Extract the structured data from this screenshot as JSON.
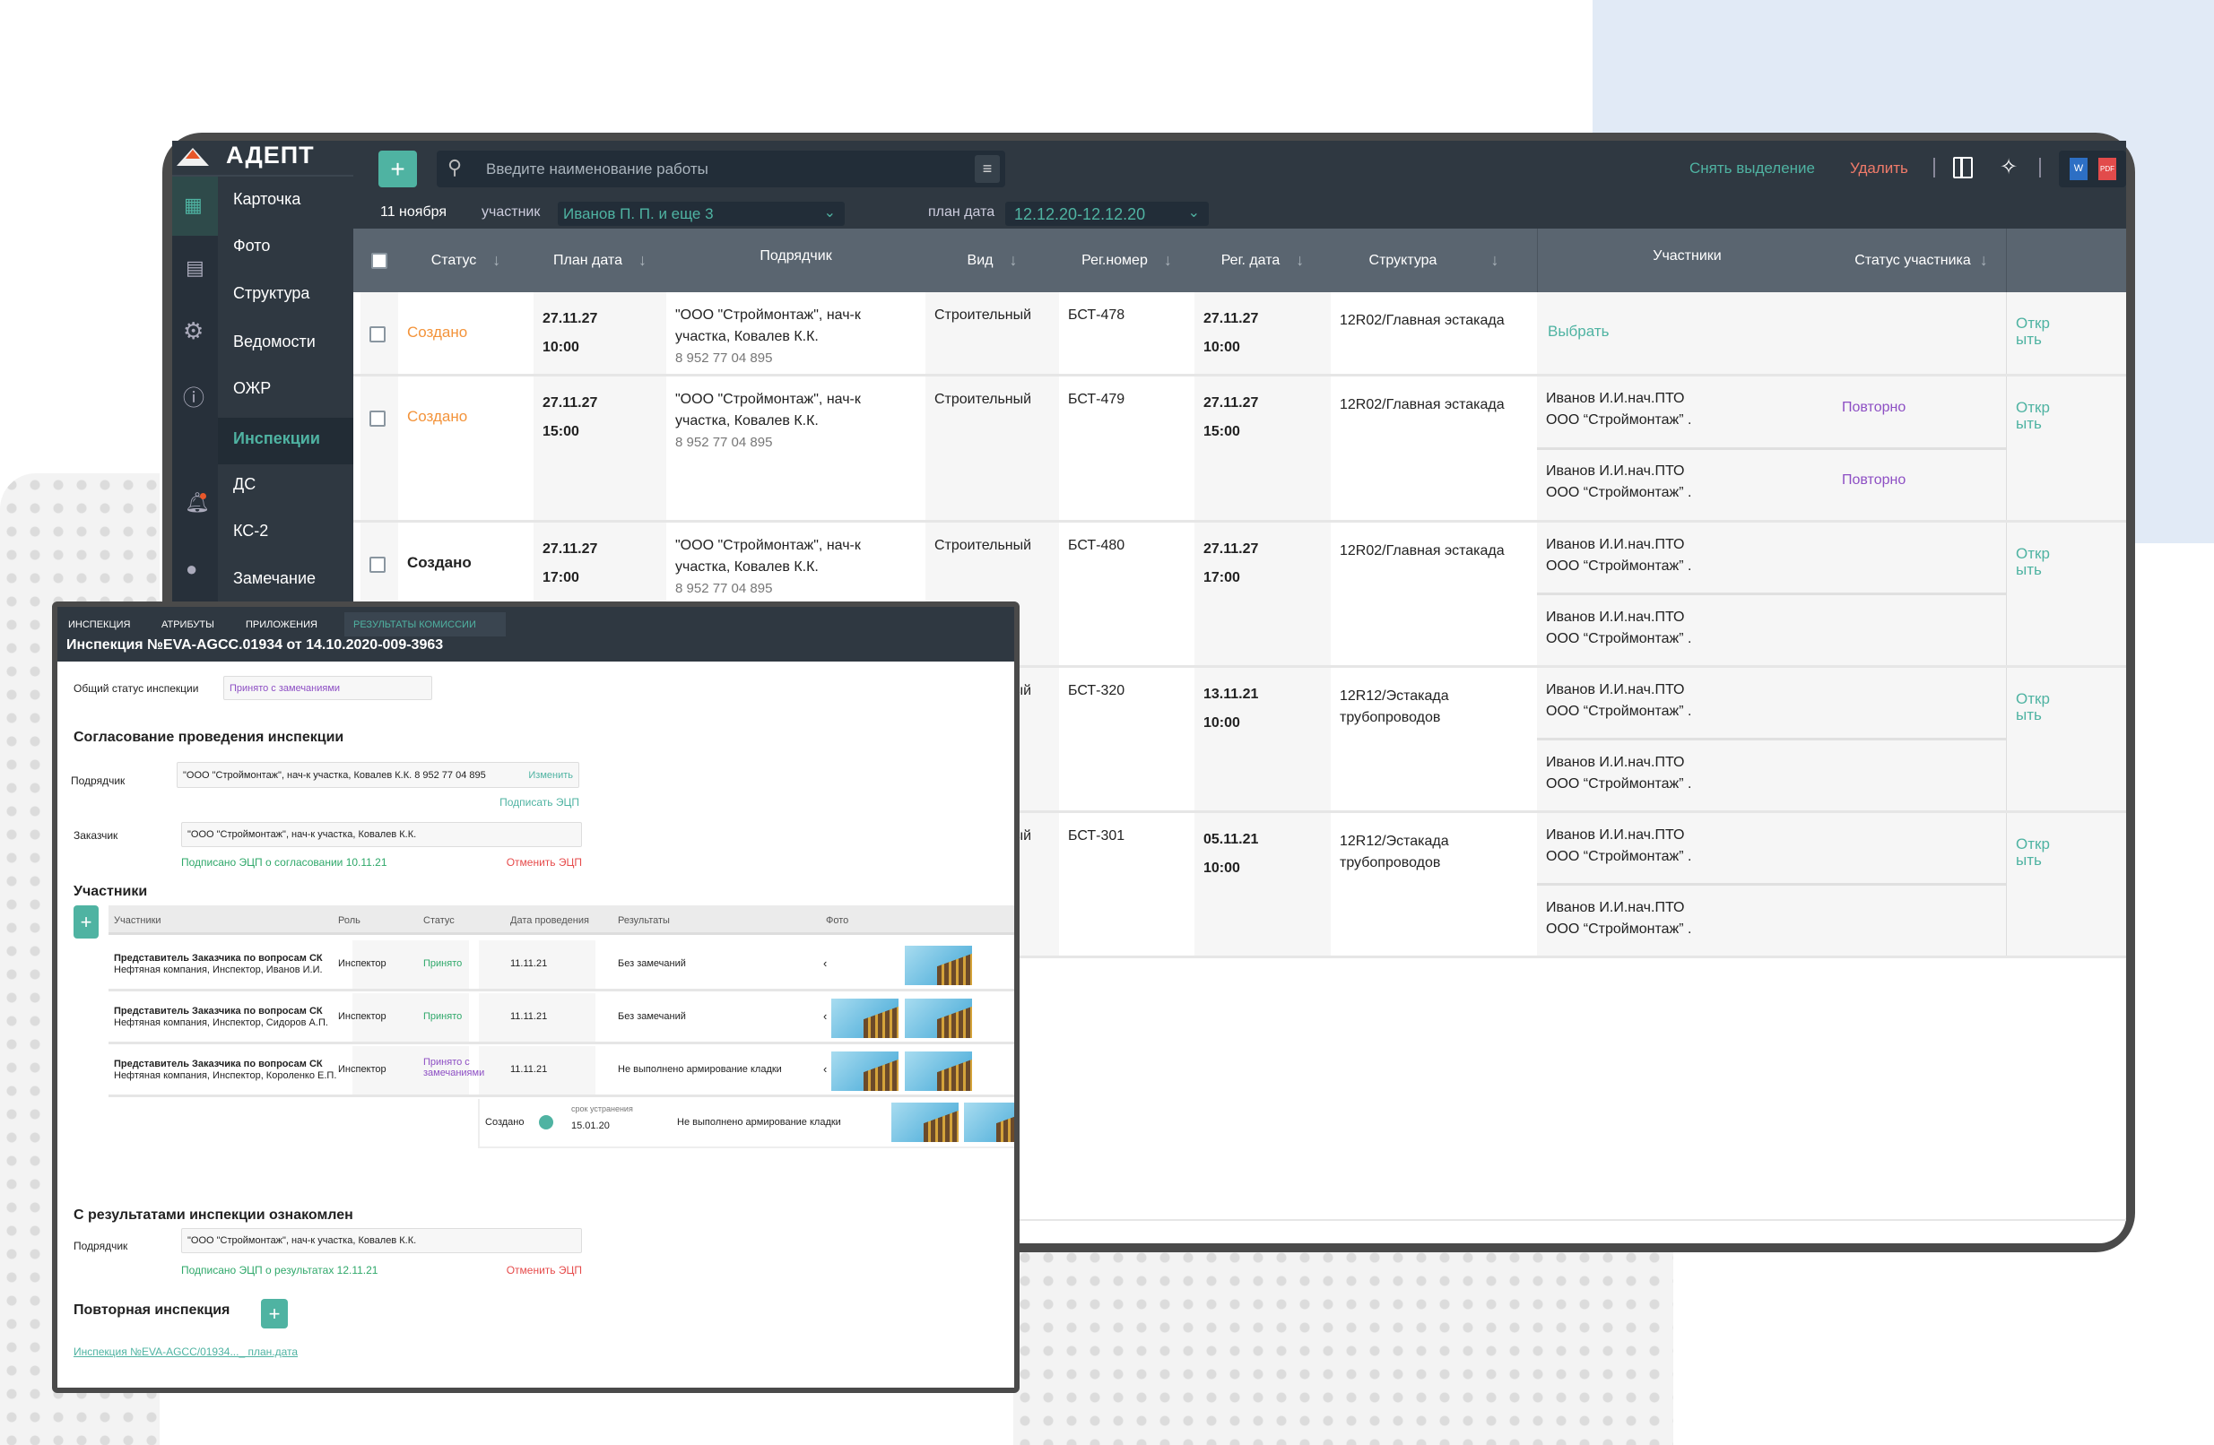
{
  "brand": {
    "name": "АДЕПТ",
    "accent": "#4fb3a2",
    "danger": "#e64b4b",
    "warning": "#f3933a"
  },
  "sidebar": {
    "items": [
      {
        "label": "Карточка"
      },
      {
        "label": "Фото"
      },
      {
        "label": "Структура"
      },
      {
        "label": "Ведомости"
      },
      {
        "label": "ОЖР"
      },
      {
        "label": "Инспекции",
        "active": true
      },
      {
        "label": "ДС"
      },
      {
        "label": "КС-2"
      },
      {
        "label": "Замечание"
      }
    ],
    "icons": [
      "buildings-icon",
      "document-icon",
      "gear-icon",
      "info-icon",
      "bell-icon",
      "user-icon"
    ]
  },
  "toolbar": {
    "add_label": "+",
    "search_placeholder": "Введите наименование работы",
    "deselect": "Снять выделение",
    "delete": "Удалить",
    "date": "11 ноября",
    "participant_label": "участник",
    "participant_value": "Иванов П. П. и еще 3",
    "plan_label": "план дата",
    "plan_value": "12.12.20-12.12.20"
  },
  "table": {
    "headers": {
      "status": "Статус",
      "plan": "План дата",
      "contractor": "Подрядчик",
      "kind": "Вид",
      "reg": "Рег.номер",
      "regdate": "Рег. дата",
      "structure": "Структура",
      "participants": "Участники",
      "pstatus": "Статус участника"
    },
    "choose": "Выбрать",
    "open": "Откр ыть",
    "rows": [
      {
        "status": "Создано",
        "status_color": "#f3933a",
        "plan_date": "27.11.27",
        "plan_time": "10:00",
        "contractor": "\"ООО \"Строймонтаж\", нач-к участка, Ковалев К.К.",
        "phone": "8 952 77 04 895",
        "kind": "Строительный",
        "reg": "БСТ-478",
        "reg_date": "27.11.27",
        "reg_time": "10:00",
        "structure": "12R02/Главная эстакада",
        "participants": []
      },
      {
        "status": "Создано",
        "status_color": "#f3933a",
        "plan_date": "27.11.27",
        "plan_time": "15:00",
        "contractor": "\"ООО \"Строймонтаж\", нач-к участка, Ковалев К.К.",
        "phone": "8 952 77 04 895",
        "kind": "Строительный",
        "reg": "БСТ-479",
        "reg_date": "27.11.27",
        "reg_time": "15:00",
        "structure": "12R02/Главная эстакада",
        "participants": [
          {
            "name": "Иванов И.И.нач.ПТО",
            "org": "ООО  “Строймонтаж” .",
            "status": "Повторно"
          },
          {
            "name": "Иванов И.И.нач.ПТО",
            "org": "ООО  “Строймонтаж” .",
            "status": "Повторно"
          }
        ]
      },
      {
        "status": "Создано",
        "status_color": "#222222",
        "plan_date": "27.11.27",
        "plan_time": "17:00",
        "contractor": "\"ООО \"Строймонтаж\", нач-к участка, Ковалев К.К.",
        "phone": "8 952 77 04 895",
        "kind": "Строительный",
        "reg": "БСТ-480",
        "reg_date": "27.11.27",
        "reg_time": "17:00",
        "structure": "12R02/Главная эстакада",
        "participants": [
          {
            "name": "Иванов И.И.нач.ПТО",
            "org": "ООО  “Строймонтаж” ."
          },
          {
            "name": "Иванов И.И.нач.ПТО",
            "org": "ООО  “Строймонтаж” ."
          }
        ]
      },
      {
        "kind": "Строительный",
        "reg": "БСТ-320",
        "reg_date": "13.11.21",
        "reg_time": "10:00",
        "structure": "12R12/Эстакада трубопроводов",
        "participants": [
          {
            "name": "Иванов И.И.нач.ПТО",
            "org": "ООО  “Строймонтаж” ."
          },
          {
            "name": "Иванов И.И.нач.ПТО",
            "org": "ООО  “Строймонтаж” ."
          }
        ]
      },
      {
        "kind": "Строительный",
        "reg": "БСТ-301",
        "reg_date": "05.11.21",
        "reg_time": "10:00",
        "structure": "12R12/Эстакада трубопроводов",
        "participants": [
          {
            "name": "Иванов И.И.нач.ПТО",
            "org": "ООО  “Строймонтаж” ."
          },
          {
            "name": "Иванов И.И.нач.ПТО",
            "org": "ООО  “Строймонтаж” ."
          }
        ]
      }
    ]
  },
  "panel": {
    "tabs": [
      "ИНСПЕКЦИЯ",
      "АТРИБУТЫ",
      "ПРИЛОЖЕНИЯ",
      "РЕЗУЛЬТАТЫ КОМИССИИ"
    ],
    "title": "Инспекция №EVA-AGCC.01934 от 14.10.2020-009-3963",
    "overall_label": "Общий статус инспекции",
    "overall_value": "Принято с замечаниями",
    "approval_heading": "Согласование проведения инспекции",
    "contractor_label": "Подрядчик",
    "contractor_value": "\"ООО \"Строймонтаж\", нач-к участка, Ковалев К.К. 8 952 77 04 895",
    "change": "Изменить",
    "sign": "Подписать ЭЦП",
    "customer_label": "Заказчик",
    "customer_value": "\"ООО \"Строймонтаж\", нач-к участка, Ковалев К.К.",
    "signed_approval": "Подписано ЭЦП о согласовании 10.11.21",
    "cancel_sign": "Отменить ЭЦП",
    "participants_heading": "Участники",
    "ptable": {
      "headers": [
        "Участники",
        "Роль",
        "Статус",
        "Дата проведения",
        "Результаты",
        "Фото"
      ],
      "rows": [
        {
          "title": "Представитель Заказчика по вопросам СК",
          "sub": "Нефтяная компания, Инспектор, Иванов И.И.",
          "role": "Инспектор",
          "status": "Принято",
          "status_color": "#2fa86a",
          "date": "11.11.21",
          "result": "Без замечаний"
        },
        {
          "title": "Представитель Заказчика по вопросам СК",
          "sub": "Нефтяная компания, Инспектор, Сидоров А.П.",
          "role": "Инспектор",
          "status": "Принято",
          "status_color": "#2fa86a",
          "date": "11.11.21",
          "result": "Без замечаний"
        },
        {
          "title": "Представитель Заказчика по вопросам СК",
          "sub": "Нефтяная компания, Инспектор, Короленко Е.П.",
          "role": "Инспектор",
          "status": "Принято с замечаниями",
          "status_color": "#8d4fc4",
          "date": "11.11.21",
          "result": "Не выполнено армирование кладки"
        }
      ],
      "extra": {
        "status": "Создано",
        "deadline_label": "срок устранения",
        "deadline": "15.01.20",
        "result": "Не выполнено армирование кладки"
      }
    },
    "results_heading": "С результатами инспекции ознакомлен",
    "results_contractor_label": "Подрядчик",
    "results_contractor_value": "\"ООО \"Строймонтаж\", нач-к участка, Ковалев К.К.",
    "signed_results": "Подписано ЭЦП о результатах 12.11.21",
    "cancel_sign2": "Отменить ЭЦП",
    "repeat_heading": "Повторная инспекция",
    "repeat_link": "Инспекция №EVA-AGCC/01934..._ план.дата"
  }
}
